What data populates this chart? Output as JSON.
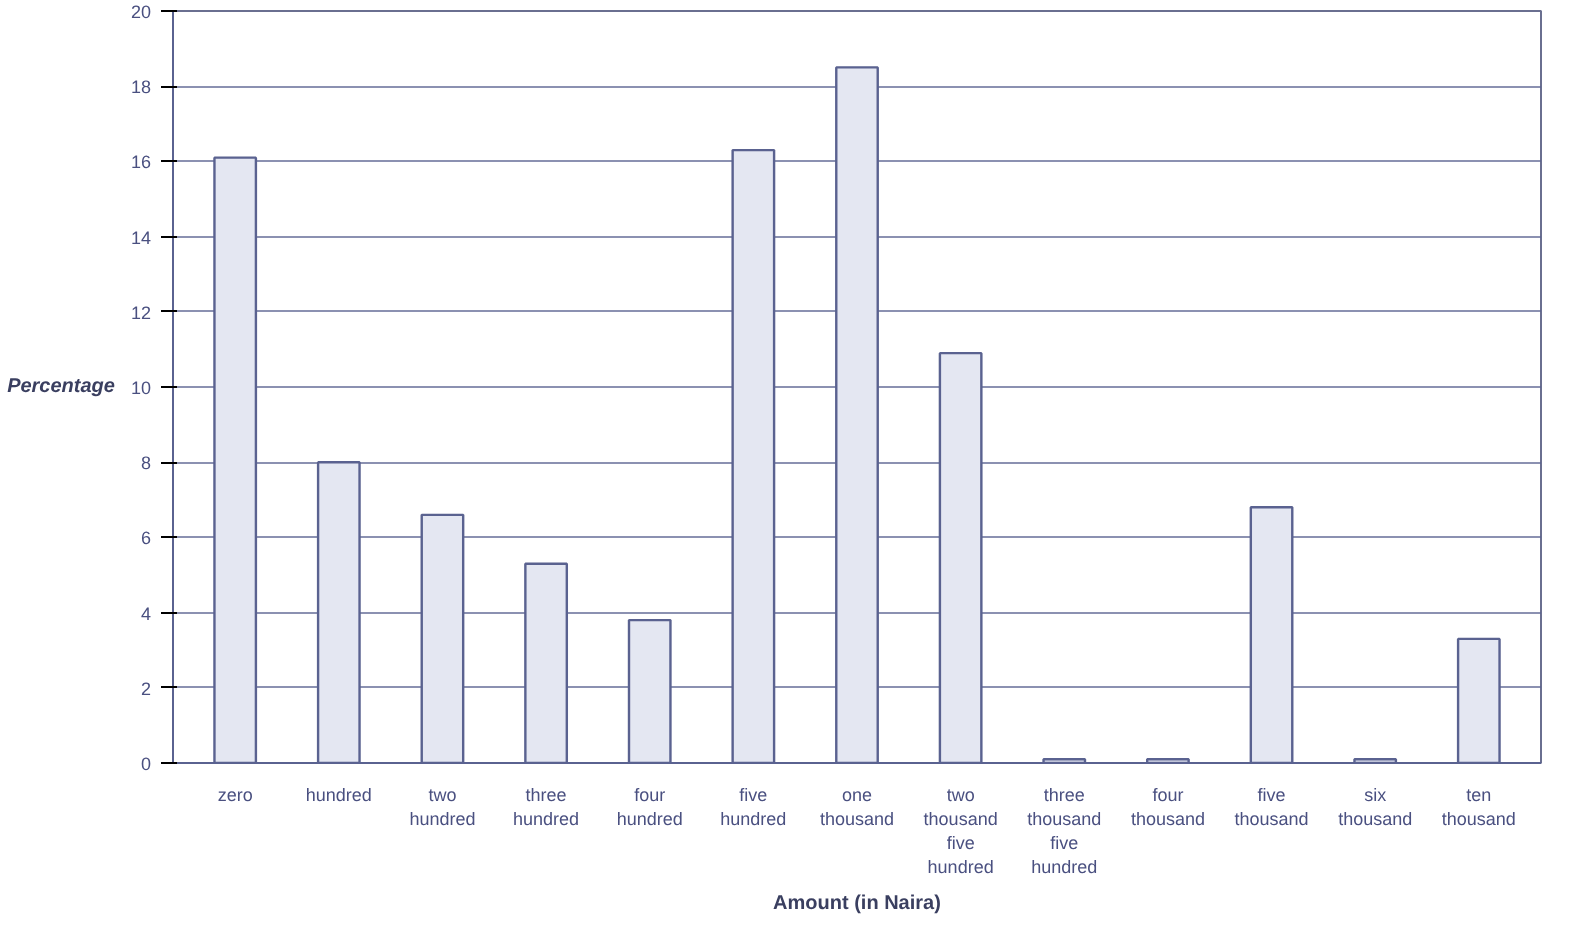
{
  "chart_data": {
    "type": "bar",
    "xlabel": "Amount (in Naira)",
    "ylabel": "Percentage",
    "categories": [
      "zero",
      "hundred",
      "two hundred",
      "three hundred",
      "four hundred",
      "five hundred",
      "one thousand",
      "two thousand five hundred",
      "three thousand five hundred",
      "four thousand",
      "five thousand",
      "six thousand",
      "ten thousand"
    ],
    "values": [
      16.1,
      8.0,
      6.6,
      5.3,
      3.8,
      16.3,
      18.5,
      10.9,
      0.1,
      0.1,
      6.8,
      0.1,
      3.3
    ],
    "color": "#e4e7f2",
    "ylim": [
      0,
      20
    ],
    "yticks": [
      0,
      2,
      4,
      6,
      8,
      10,
      12,
      14,
      16,
      18,
      20
    ],
    "grid": "y"
  }
}
